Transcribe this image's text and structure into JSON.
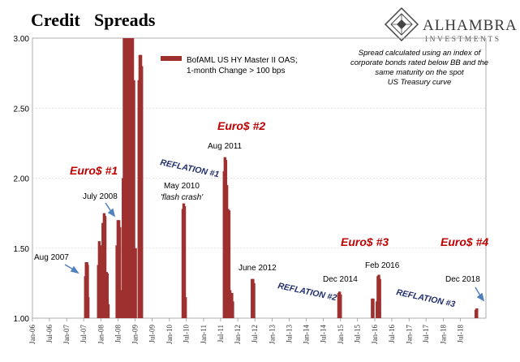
{
  "title": {
    "part1": "Credit",
    "part2": "Spreads"
  },
  "brand": {
    "name": "ALHAMBRA",
    "sub": "INVESTMENTS"
  },
  "legend": {
    "line1": "BofAML US HY Master II OAS;",
    "line2": "1-month Change > 100 bps"
  },
  "note": {
    "line1": "Spread calculated using an index of",
    "line2": "corporate bonds rated below BB and the",
    "line3": "same maturity on the spot",
    "line4": "US Treasury curve"
  },
  "colors": {
    "bar": "#9e3030",
    "euro": "#c00000",
    "reflation": "#1f2d6b",
    "arrow": "#4f81bd",
    "title1": "#c00000",
    "title2": "#1f2d6b"
  },
  "annotations": {
    "aug2007": "Aug 2007",
    "july2008": "July 2008",
    "may2010": "May 2010",
    "flash_crash": "'flash crash'",
    "aug2011": "Aug 2011",
    "june2012": "June 2012",
    "dec2014": "Dec 2014",
    "feb2016": "Feb 2016",
    "dec2018": "Dec 2018",
    "euro1": "Euro$ #1",
    "euro2": "Euro$ #2",
    "euro3": "Euro$ #3",
    "euro4": "Euro$ #4",
    "reflation1": "REFLATION #1",
    "reflation2": "REFLATION #2",
    "reflation3": "REFLATION #3"
  },
  "chart_data": {
    "type": "bar",
    "xlabel": "",
    "ylabel": "",
    "ylim": [
      1.0,
      3.0
    ],
    "yticks": [
      "1.00",
      "1.50",
      "2.00",
      "2.50",
      "3.00"
    ],
    "grid": true,
    "legend_placement": "top-center",
    "x_start": "2006-01",
    "x_end": "2019-04",
    "xticks": [
      "Jan-06",
      "Jul-06",
      "Jan-07",
      "Jul-07",
      "Jan-08",
      "Jul-08",
      "Jan-09",
      "Jul-09",
      "Jan-10",
      "Jul-10",
      "Jan-11",
      "Jul-11",
      "Jan-12",
      "Jul-12",
      "Jan-13",
      "Jul-13",
      "Jan-14",
      "Jul-14",
      "Jan-15",
      "Jul-15",
      "Jan-16",
      "Jul-16",
      "Jan-17",
      "Jul-17",
      "Jan-18",
      "Jul-18"
    ],
    "series": [
      {
        "points": [
          {
            "x": "2007-07-20",
            "y": 1.3
          },
          {
            "x": "2007-07-28",
            "y": 1.4
          },
          {
            "x": "2007-08-05",
            "y": 1.4
          },
          {
            "x": "2007-08-12",
            "y": 1.38
          },
          {
            "x": "2007-08-18",
            "y": 1.15
          },
          {
            "x": "2007-12-05",
            "y": 1.38
          },
          {
            "x": "2007-12-15",
            "y": 1.55
          },
          {
            "x": "2007-12-25",
            "y": 1.52
          },
          {
            "x": "2008-01-12",
            "y": 1.45
          },
          {
            "x": "2008-01-22",
            "y": 1.68
          },
          {
            "x": "2008-02-05",
            "y": 1.75
          },
          {
            "x": "2008-02-15",
            "y": 1.73
          },
          {
            "x": "2008-03-01",
            "y": 1.33
          },
          {
            "x": "2008-03-10",
            "y": 1.32
          },
          {
            "x": "2008-03-20",
            "y": 1.1
          },
          {
            "x": "2008-06-20",
            "y": 1.52
          },
          {
            "x": "2008-07-01",
            "y": 1.7
          },
          {
            "x": "2008-07-12",
            "y": 1.7
          },
          {
            "x": "2008-07-22",
            "y": 1.65
          },
          {
            "x": "2008-08-05",
            "y": 1.2
          },
          {
            "x": "2008-08-25",
            "y": 2.0
          },
          {
            "x": "2008-09-05",
            "y": 3.0
          },
          {
            "x": "2008-09-20",
            "y": 3.0
          },
          {
            "x": "2008-10-05",
            "y": 3.0
          },
          {
            "x": "2008-10-20",
            "y": 3.0
          },
          {
            "x": "2008-11-05",
            "y": 3.0
          },
          {
            "x": "2008-11-20",
            "y": 3.0
          },
          {
            "x": "2008-12-05",
            "y": 3.0
          },
          {
            "x": "2008-12-18",
            "y": 2.7
          },
          {
            "x": "2009-01-05",
            "y": 1.5
          },
          {
            "x": "2009-02-10",
            "y": 2.7
          },
          {
            "x": "2009-02-20",
            "y": 2.88
          },
          {
            "x": "2009-03-02",
            "y": 2.88
          },
          {
            "x": "2009-03-12",
            "y": 2.8
          },
          {
            "x": "2010-05-25",
            "y": 1.78
          },
          {
            "x": "2010-06-03",
            "y": 1.82
          },
          {
            "x": "2010-06-12",
            "y": 1.8
          },
          {
            "x": "2010-06-22",
            "y": 1.15
          },
          {
            "x": "2011-08-08",
            "y": 2.05
          },
          {
            "x": "2011-08-17",
            "y": 2.15
          },
          {
            "x": "2011-08-26",
            "y": 2.13
          },
          {
            "x": "2011-09-06",
            "y": 1.95
          },
          {
            "x": "2011-09-18",
            "y": 1.78
          },
          {
            "x": "2011-09-30",
            "y": 1.77
          },
          {
            "x": "2011-10-10",
            "y": 1.2
          },
          {
            "x": "2011-10-20",
            "y": 1.18
          },
          {
            "x": "2011-10-30",
            "y": 1.18
          },
          {
            "x": "2011-11-08",
            "y": 1.12
          },
          {
            "x": "2012-06-01",
            "y": 1.28
          },
          {
            "x": "2012-06-11",
            "y": 1.28
          },
          {
            "x": "2012-06-21",
            "y": 1.25
          },
          {
            "x": "2014-12-12",
            "y": 1.18
          },
          {
            "x": "2014-12-22",
            "y": 1.19
          },
          {
            "x": "2015-01-01",
            "y": 1.17
          },
          {
            "x": "2015-12-05",
            "y": 1.14
          },
          {
            "x": "2015-12-15",
            "y": 1.14
          },
          {
            "x": "2016-01-25",
            "y": 1.12
          },
          {
            "x": "2016-02-04",
            "y": 1.3
          },
          {
            "x": "2016-02-14",
            "y": 1.31
          },
          {
            "x": "2016-02-24",
            "y": 1.28
          },
          {
            "x": "2018-12-15",
            "y": 1.06
          },
          {
            "x": "2018-12-25",
            "y": 1.07
          }
        ]
      }
    ]
  }
}
